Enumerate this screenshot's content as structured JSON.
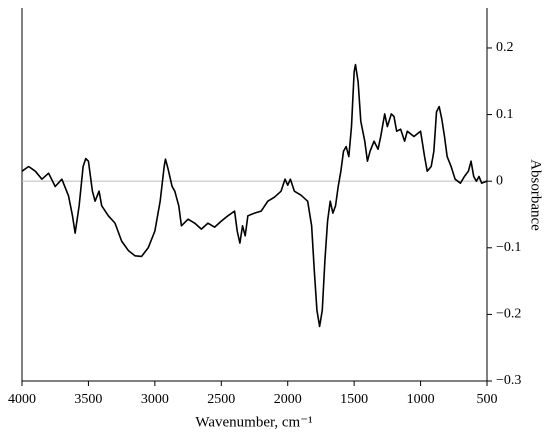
{
  "chart_data": {
    "type": "line",
    "x_label": "Wavenumber, cm⁻¹",
    "y_label": "Absorbance",
    "x": [
      4000,
      3950,
      3900,
      3850,
      3800,
      3750,
      3700,
      3650,
      3620,
      3600,
      3570,
      3540,
      3520,
      3500,
      3470,
      3450,
      3420,
      3400,
      3350,
      3300,
      3250,
      3200,
      3150,
      3100,
      3050,
      3000,
      2960,
      2930,
      2920,
      2900,
      2870,
      2850,
      2820,
      2800,
      2750,
      2700,
      2650,
      2600,
      2550,
      2500,
      2450,
      2400,
      2380,
      2360,
      2340,
      2320,
      2300,
      2250,
      2200,
      2150,
      2100,
      2050,
      2020,
      2000,
      1980,
      1950,
      1900,
      1850,
      1820,
      1800,
      1780,
      1760,
      1740,
      1720,
      1700,
      1680,
      1660,
      1640,
      1620,
      1600,
      1580,
      1560,
      1540,
      1520,
      1500,
      1490,
      1470,
      1450,
      1420,
      1400,
      1380,
      1350,
      1320,
      1300,
      1270,
      1250,
      1220,
      1200,
      1180,
      1150,
      1120,
      1100,
      1050,
      1000,
      970,
      950,
      920,
      900,
      880,
      860,
      840,
      820,
      800,
      770,
      740,
      700,
      670,
      640,
      620,
      600,
      580,
      560,
      540,
      500
    ],
    "series": [
      {
        "color": "#000000",
        "values": [
          0.015,
          0.022,
          0.015,
          0.003,
          0.012,
          -0.008,
          0.003,
          -0.022,
          -0.052,
          -0.078,
          -0.037,
          0.022,
          0.034,
          0.03,
          -0.015,
          -0.03,
          -0.015,
          -0.037,
          -0.052,
          -0.063,
          -0.09,
          -0.104,
          -0.112,
          -0.113,
          -0.1,
          -0.075,
          -0.03,
          0.022,
          0.033,
          0.018,
          -0.008,
          -0.015,
          -0.037,
          -0.067,
          -0.057,
          -0.063,
          -0.072,
          -0.063,
          -0.069,
          -0.06,
          -0.052,
          -0.045,
          -0.075,
          -0.093,
          -0.067,
          -0.082,
          -0.052,
          -0.048,
          -0.045,
          -0.03,
          -0.024,
          -0.015,
          0.003,
          -0.006,
          0.003,
          -0.015,
          -0.021,
          -0.03,
          -0.067,
          -0.134,
          -0.194,
          -0.218,
          -0.194,
          -0.119,
          -0.06,
          -0.03,
          -0.048,
          -0.037,
          -0.008,
          0.015,
          0.045,
          0.052,
          0.037,
          0.082,
          0.164,
          0.175,
          0.149,
          0.09,
          0.06,
          0.03,
          0.045,
          0.06,
          0.048,
          0.067,
          0.101,
          0.082,
          0.101,
          0.097,
          0.075,
          0.078,
          0.06,
          0.075,
          0.067,
          0.075,
          0.037,
          0.015,
          0.022,
          0.045,
          0.104,
          0.112,
          0.093,
          0.067,
          0.037,
          0.022,
          0.003,
          -0.003,
          0.007,
          0.015,
          0.03,
          0.007,
          0,
          0.007,
          -0.003,
          0
        ]
      }
    ],
    "xlim": [
      4000,
      500
    ],
    "xticks": [
      4000,
      3500,
      3000,
      2500,
      2000,
      1500,
      1000,
      500
    ],
    "ylim": [
      -0.3,
      0.26
    ],
    "yticks": [
      {
        "value": -0.3,
        "label": "−0.3"
      },
      {
        "value": -0.2,
        "label": "−0.2"
      },
      {
        "value": -0.1,
        "label": "−0.1"
      },
      0,
      0.1,
      0.2
    ],
    "zero_line": true
  }
}
